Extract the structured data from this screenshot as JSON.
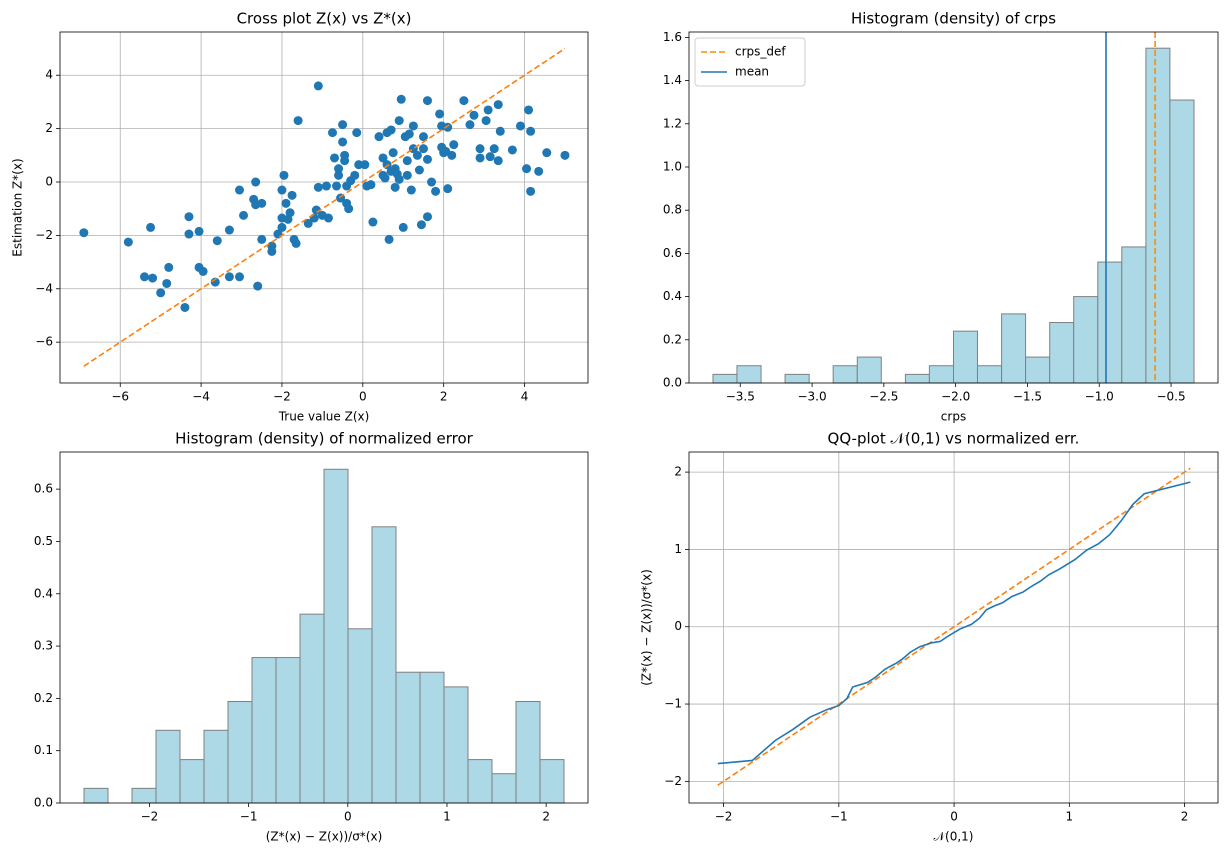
{
  "chart_data": [
    {
      "type": "scatter",
      "title": "Cross plot Z(x) vs Z*(x)",
      "xlabel": "True value Z(x)",
      "ylabel": "Estimation Z*(x)",
      "x": [
        -6.9,
        -5.8,
        -5.25,
        -5.4,
        -5.2,
        -5.0,
        -4.8,
        -4.85,
        -4.4,
        -4.3,
        -4.3,
        -4.05,
        -4.05,
        -3.95,
        -3.6,
        -3.65,
        -3.3,
        -3.3,
        -3.05,
        -2.95,
        -3.05,
        -2.7,
        -2.65,
        -2.65,
        -2.5,
        -2.6,
        -2.5,
        -2.25,
        -2.25,
        -2.1,
        -2.0,
        -2.0,
        -2.0,
        -1.95,
        -1.9,
        -1.85,
        -1.75,
        -1.8,
        -1.7,
        -1.65,
        -1.6,
        -1.35,
        -1.2,
        -1.1,
        -1.1,
        -1.15,
        -1.0,
        -0.9,
        -0.85,
        -0.75,
        -0.7,
        -0.65,
        -0.6,
        -0.55,
        -0.6,
        -0.5,
        -0.5,
        -0.45,
        -0.45,
        -0.4,
        -0.4,
        -0.35,
        -0.3,
        -0.2,
        -0.15,
        -0.1,
        0.05,
        0.1,
        0.2,
        0.25,
        0.4,
        0.5,
        0.5,
        0.55,
        0.6,
        0.6,
        0.65,
        0.7,
        0.7,
        0.75,
        0.8,
        0.8,
        0.85,
        0.9,
        0.9,
        0.95,
        1.0,
        1.05,
        1.1,
        1.1,
        1.15,
        1.2,
        1.25,
        1.25,
        1.35,
        1.4,
        1.45,
        1.5,
        1.5,
        1.6,
        1.6,
        1.6,
        1.7,
        1.8,
        1.9,
        1.95,
        1.95,
        2.0,
        2.05,
        2.1,
        2.2,
        2.25,
        2.5,
        2.65,
        2.75,
        2.9,
        2.9,
        3.05,
        3.1,
        3.15,
        3.25,
        3.35,
        3.4,
        3.35,
        3.7,
        3.9,
        4.05,
        4.1,
        4.15,
        4.15,
        4.35,
        4.55,
        5.0,
        2.1
      ],
      "values": [
        -1.9,
        -2.25,
        -1.7,
        -3.55,
        -3.6,
        -4.15,
        -3.2,
        -3.8,
        -4.7,
        -1.3,
        -1.95,
        -1.85,
        -3.2,
        -3.35,
        -2.2,
        -3.75,
        -1.8,
        -3.55,
        -0.3,
        -1.25,
        -3.55,
        -0.65,
        0,
        -0.85,
        -0.8,
        -3.9,
        -2.15,
        -2.4,
        -2.6,
        -1.95,
        -1.7,
        -1.35,
        -0.3,
        0.25,
        -0.8,
        -1.4,
        -0.5,
        -1.15,
        -2.15,
        -2.3,
        2.3,
        -1.55,
        -1.35,
        3.6,
        -0.2,
        -1.05,
        -1.25,
        -0.15,
        -1.35,
        1.85,
        0.9,
        -0.15,
        0.25,
        -0.6,
        0.5,
        2.15,
        1.5,
        1.0,
        0.8,
        -0.15,
        -0.8,
        -1.0,
        0.05,
        0.25,
        1.85,
        0.65,
        0.65,
        -0.15,
        -0.1,
        -1.5,
        1.7,
        0.25,
        0.9,
        0.15,
        1.85,
        0.65,
        -2.15,
        0.4,
        1.95,
        1.1,
        0.5,
        -0.2,
        0.3,
        0.1,
        2.3,
        3.1,
        -1.7,
        1.7,
        0.25,
        0.8,
        1.8,
        -0.3,
        1.25,
        2.1,
        1.0,
        0.45,
        -1.6,
        1.7,
        1.25,
        0.85,
        3.05,
        -1.3,
        0,
        -0.35,
        2.55,
        1.3,
        2.1,
        1.1,
        1.15,
        -0.25,
        1.0,
        1.4,
        3.05,
        2.15,
        2.5,
        1.25,
        0.9,
        2.3,
        2.7,
        0.95,
        1.25,
        2.9,
        1.9,
        0.8,
        1.2,
        2.1,
        0.5,
        2.7,
        1.9,
        -0.35,
        0.4,
        1.1,
        1.0,
        2.05
      ],
      "color": "#1f77b4",
      "reference_line": {
        "x": [
          -6.9,
          5.0
        ],
        "values": [
          -6.9,
          5.0
        ],
        "color": "#ff7f0e",
        "style": "dashed"
      },
      "xlim": [
        -7.49,
        5.57
      ],
      "ylim": [
        -7.53,
        5.62
      ],
      "xticks": [
        {
          "value": -6,
          "label": "−6"
        },
        {
          "value": -4,
          "label": "−4"
        },
        {
          "value": -2,
          "label": "−2"
        },
        0,
        2,
        4
      ],
      "yticks": [
        {
          "value": -6,
          "label": "−6"
        },
        {
          "value": -4,
          "label": "−4"
        },
        {
          "value": -2,
          "label": "−2"
        },
        0,
        2,
        4
      ],
      "grid": true
    },
    {
      "type": "histogram",
      "title": "Histogram (density) of crps",
      "xlabel": "crps",
      "bins": [
        -3.69,
        -3.523,
        -3.355,
        -3.188,
        -3.02,
        -2.853,
        -2.685,
        -2.518,
        -2.35,
        -2.183,
        -2.015,
        -1.848,
        -1.68,
        -1.513,
        -1.345,
        -1.178,
        -1.01,
        -0.843,
        -0.675,
        -0.508,
        -0.34
      ],
      "values": [
        0.04,
        0.08,
        0,
        0.04,
        0,
        0.08,
        0.12,
        0,
        0.04,
        0.08,
        0.24,
        0.08,
        0.32,
        0.12,
        0.28,
        0.4,
        0.56,
        0.63,
        1.55,
        1.31
      ],
      "color": "#add8e6",
      "edgecolor": "#808080",
      "vlines": [
        {
          "name": "crps_def",
          "value": -0.611,
          "color": "#ff8c00",
          "style": "dashed"
        },
        {
          "name": "mean",
          "value": -0.953,
          "color": "#1f77b4",
          "style": "solid"
        }
      ],
      "legend": "upper left",
      "xlim": [
        -3.857,
        -0.173
      ],
      "ylim": [
        0,
        1.625
      ],
      "xticks": [
        {
          "value": -3.5,
          "label": "−3.5"
        },
        {
          "value": -3.0,
          "label": "−3.0"
        },
        {
          "value": -2.5,
          "label": "−2.5"
        },
        {
          "value": -2.0,
          "label": "−2.0"
        },
        {
          "value": -1.5,
          "label": "−1.5"
        },
        {
          "value": -1.0,
          "label": "−1.0"
        },
        {
          "value": -0.5,
          "label": "−0.5"
        }
      ],
      "yticks": [
        {
          "value": 0,
          "label": "0.0"
        },
        0.2,
        0.4,
        0.6,
        0.8,
        {
          "value": 1,
          "label": "1.0"
        },
        1.2,
        1.4,
        1.6
      ],
      "grid": false
    },
    {
      "type": "histogram",
      "title": "Histogram (density) of normalized error",
      "xlabel": "(Z*(x) − Z(x))/σ*(x)",
      "bins": [
        -2.66,
        -2.418,
        -2.176,
        -1.934,
        -1.692,
        -1.45,
        -1.208,
        -0.966,
        -0.724,
        -0.482,
        -0.24,
        0.002,
        0.244,
        0.486,
        0.728,
        0.97,
        1.212,
        1.454,
        1.696,
        1.938,
        2.18
      ],
      "values": [
        0.028,
        0,
        0.028,
        0.139,
        0.083,
        0.139,
        0.194,
        0.278,
        0.278,
        0.361,
        0.638,
        0.333,
        0.528,
        0.25,
        0.25,
        0.222,
        0.083,
        0.056,
        0.194,
        0.083
      ],
      "color": "#add8e6",
      "edgecolor": "#808080",
      "xlim": [
        -2.902,
        2.422
      ],
      "ylim": [
        0,
        0.671
      ],
      "xticks": [
        {
          "value": -2,
          "label": "−2"
        },
        {
          "value": -1,
          "label": "−1"
        },
        0,
        1,
        2
      ],
      "yticks": [
        {
          "value": 0,
          "label": "0.0"
        },
        0.1,
        0.2,
        0.3,
        0.4,
        0.5,
        0.6
      ],
      "grid": false
    },
    {
      "type": "line",
      "title": "QQ-plot 𝒩(0,1) vs normalized err.",
      "xlabel": "𝒩(0,1)",
      "ylabel": "(Z*(x) − Z(x))/σ*(x)",
      "x": [
        -2.05,
        -1.75,
        -1.55,
        -1.4,
        -1.25,
        -1.1,
        -1.0,
        -0.93,
        -0.88,
        -0.75,
        -0.68,
        -0.6,
        -0.5,
        -0.45,
        -0.38,
        -0.3,
        -0.2,
        -0.12,
        -0.05,
        0.05,
        0.15,
        0.22,
        0.28,
        0.35,
        0.42,
        0.5,
        0.6,
        0.68,
        0.75,
        0.82,
        0.92,
        1.05,
        1.15,
        1.25,
        1.35,
        1.45,
        1.55,
        1.65,
        2.05
      ],
      "values": [
        -1.77,
        -1.73,
        -1.47,
        -1.33,
        -1.17,
        -1.07,
        -1.02,
        -0.93,
        -0.78,
        -0.72,
        -0.65,
        -0.55,
        -0.47,
        -0.42,
        -0.33,
        -0.26,
        -0.21,
        -0.19,
        -0.12,
        -0.03,
        0.03,
        0.11,
        0.22,
        0.27,
        0.31,
        0.39,
        0.45,
        0.53,
        0.59,
        0.67,
        0.75,
        0.87,
        0.99,
        1.07,
        1.19,
        1.37,
        1.58,
        1.72,
        1.87
      ],
      "color": "#1f77b4",
      "reference_line": {
        "x": [
          -2.05,
          2.05
        ],
        "values": [
          -2.05,
          2.05
        ],
        "color": "#ff7f0e",
        "style": "dashed"
      },
      "xlim": [
        -2.3,
        2.29
      ],
      "ylim": [
        -2.28,
        2.26
      ],
      "xticks": [
        {
          "value": -2,
          "label": "−2"
        },
        {
          "value": -1,
          "label": "−1"
        },
        0,
        1,
        2
      ],
      "yticks": [
        {
          "value": -2,
          "label": "−2"
        },
        {
          "value": -1,
          "label": "−1"
        },
        0,
        1,
        2
      ],
      "grid": true
    }
  ]
}
